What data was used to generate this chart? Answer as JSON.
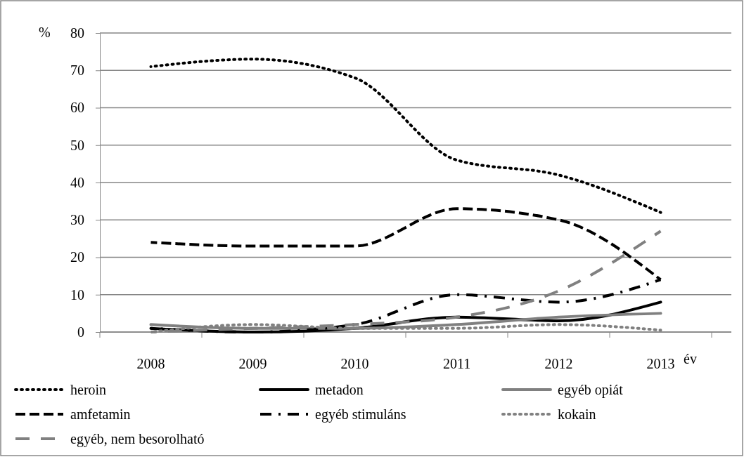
{
  "chart_data": {
    "type": "line",
    "xlabel": "év",
    "ylabel": "%",
    "categories": [
      "2008",
      "2009",
      "2010",
      "2011",
      "2012",
      "2013"
    ],
    "ylim": [
      0,
      80
    ],
    "yticks": [
      0,
      10,
      20,
      30,
      40,
      50,
      60,
      70,
      80
    ],
    "grid": "y",
    "legend": "bottom",
    "series": [
      {
        "name": "heroin",
        "color": "#000000",
        "line_style": "dotted",
        "values": [
          71,
          73,
          68,
          46,
          42,
          32
        ]
      },
      {
        "name": "metadon",
        "color": "#000000",
        "line_style": "solid",
        "values": [
          1,
          0,
          1,
          4,
          3,
          8
        ]
      },
      {
        "name": "egyéb opiát",
        "color": "#808080",
        "line_style": "solid",
        "values": [
          2,
          1,
          1,
          2,
          4,
          5
        ]
      },
      {
        "name": "amfetamin",
        "color": "#000000",
        "line_style": "dashed",
        "values": [
          24,
          23,
          23,
          33,
          30,
          14
        ]
      },
      {
        "name": "egyéb stimuláns",
        "color": "#000000",
        "line_style": "dashdot",
        "values": [
          1,
          0,
          2,
          10,
          8,
          14
        ]
      },
      {
        "name": "kokain",
        "color": "#808080",
        "line_style": "dotted",
        "values": [
          0,
          2,
          1,
          1,
          2,
          0.5
        ]
      },
      {
        "name": "egyéb, nem besorolható",
        "color": "#808080",
        "line_style": "longdash",
        "values": [
          0,
          1,
          2,
          4,
          11,
          27
        ]
      }
    ]
  }
}
